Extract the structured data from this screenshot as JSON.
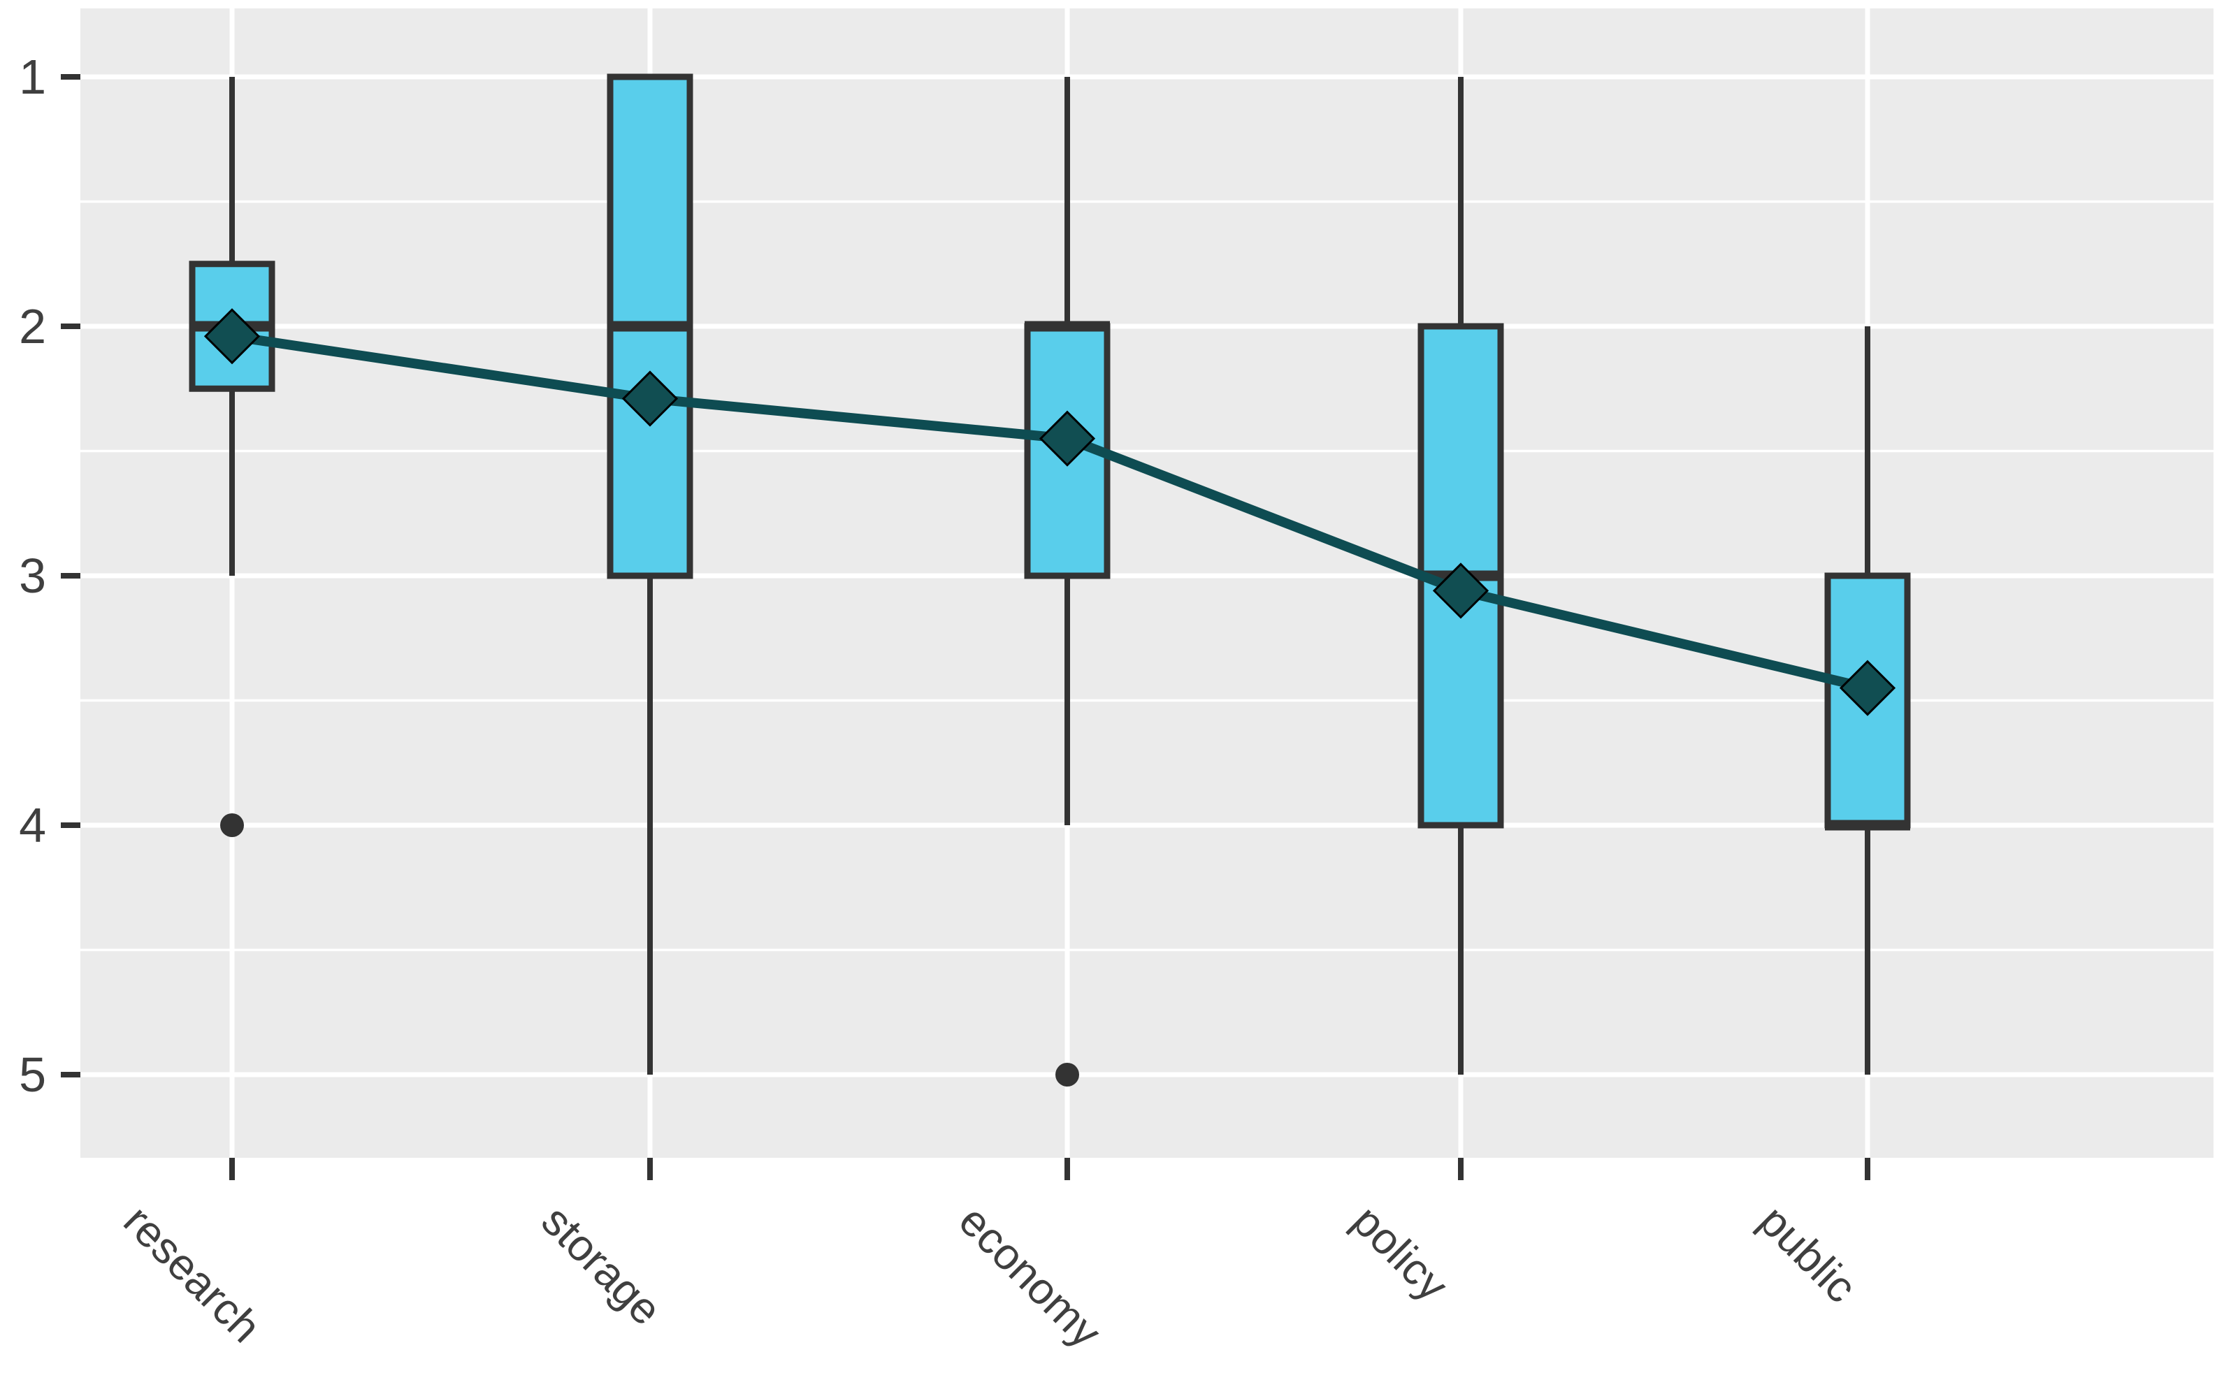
{
  "chart_data": {
    "type": "boxplot",
    "title": "",
    "orientation": "vertical",
    "categories": [
      "research",
      "storage",
      "economy",
      "policy",
      "public"
    ],
    "x_tick_labels": [
      "research",
      "storage",
      "economy",
      "policy",
      "public"
    ],
    "y_axis": {
      "tick_labels": [
        "1",
        "2",
        "3",
        "4",
        "5"
      ],
      "ticks": [
        1,
        2,
        3,
        4,
        5
      ],
      "minor_ticks": [
        1.5,
        2.5,
        3.5,
        4.5
      ],
      "reversed": true,
      "range_top_value": 0.72,
      "range_bottom_value": 5.33,
      "grid": "on",
      "label": ""
    },
    "series": [
      {
        "category": "research",
        "whisker_low": 1,
        "q1": 1.75,
        "median": 2,
        "q3": 2.25,
        "whisker_high": 3,
        "outliers": [
          4
        ],
        "mean": 2.04
      },
      {
        "category": "storage",
        "whisker_low": 1,
        "q1": 1,
        "median": 2,
        "q3": 3,
        "whisker_high": 5,
        "outliers": [],
        "mean": 2.29
      },
      {
        "category": "economy",
        "whisker_low": 1,
        "q1": 2,
        "median": 2,
        "q3": 3,
        "whisker_high": 4,
        "outliers": [
          5
        ],
        "mean": 2.45
      },
      {
        "category": "policy",
        "whisker_low": 1,
        "q1": 2,
        "median": 3,
        "q3": 4,
        "whisker_high": 5,
        "outliers": [],
        "mean": 3.06
      },
      {
        "category": "public",
        "whisker_low": 2,
        "q1": 3,
        "median": 4,
        "q3": 4,
        "whisker_high": 5,
        "outliers": [],
        "mean": 3.45
      }
    ],
    "mean_line_values": [
      2.04,
      2.29,
      2.45,
      3.06,
      3.45
    ],
    "legend": null,
    "colors": {
      "page_bg": "#FFFFFF",
      "panel_bg": "#EBEBEB",
      "gridline": "#FFFFFF",
      "box_fill": "#59CEEB",
      "box_stroke": "#333333",
      "whisker": "#333333",
      "median": "#333333",
      "outlier": "#333333",
      "mean_line": "#0E4C52",
      "mean_diamond_fill": "#114E52",
      "mean_diamond_stroke": "#000000",
      "tick_mark": "#333333",
      "axis_text": "#3F3F3F"
    }
  }
}
